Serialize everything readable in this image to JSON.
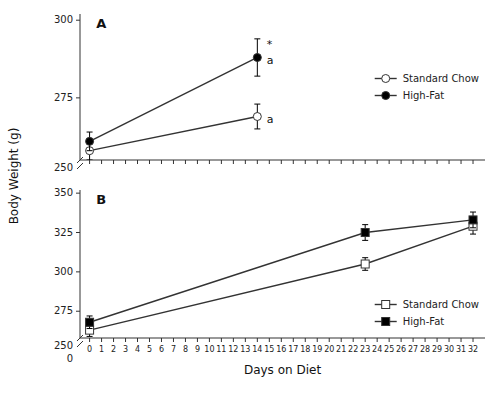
{
  "chart_data": [
    {
      "type": "line",
      "title": "A",
      "y_label": "Body Weight (g)",
      "x": [
        0,
        14
      ],
      "series": [
        {
          "name": "Standard Chow",
          "color": "white",
          "marker": "circle",
          "values": [
            258,
            269
          ],
          "errors": [
            3,
            4
          ]
        },
        {
          "name": "High-Fat",
          "color": "black",
          "marker": "circle",
          "values": [
            261,
            288
          ],
          "errors": [
            3,
            6
          ]
        }
      ],
      "xlim": [
        -0.8,
        33
      ],
      "xticks": [
        0,
        1,
        2,
        3,
        4,
        5,
        6,
        7,
        8,
        9,
        10,
        11,
        12,
        13,
        14,
        15,
        16,
        17,
        18,
        19,
        20,
        21,
        22,
        23,
        24,
        25,
        26,
        27,
        28,
        29,
        30,
        31,
        32
      ],
      "ylim": [
        255,
        302
      ],
      "yticks": [
        275,
        300
      ],
      "tick_labels": "y",
      "legend": "right",
      "grid": false,
      "annotations": [
        {
          "text": "*",
          "x": 14.7,
          "y": 292
        },
        {
          "text": "a",
          "x": 14.7,
          "y": 287
        },
        {
          "text": "a",
          "x": 14.7,
          "y": 268
        },
        {
          "text": "250"
        }
      ]
    },
    {
      "type": "line",
      "title": "B",
      "x_label": "Days on Diet",
      "x": [
        0,
        23,
        32
      ],
      "series": [
        {
          "name": "Standard Chow",
          "color": "white",
          "marker": "square",
          "values": [
            263,
            305,
            329
          ],
          "errors": [
            4,
            4,
            5
          ]
        },
        {
          "name": "High-Fat",
          "color": "black",
          "marker": "square",
          "values": [
            268,
            325,
            333
          ],
          "errors": [
            4,
            5,
            5
          ]
        }
      ],
      "xlim": [
        -0.8,
        33
      ],
      "xticks": [
        0,
        1,
        2,
        3,
        4,
        5,
        6,
        7,
        8,
        9,
        10,
        11,
        12,
        13,
        14,
        15,
        16,
        17,
        18,
        19,
        20,
        21,
        22,
        23,
        24,
        25,
        26,
        27,
        28,
        29,
        30,
        31,
        32
      ],
      "ylim": [
        258,
        352
      ],
      "yticks": [
        275,
        300,
        325,
        350
      ],
      "legend": "lower right",
      "grid": false,
      "annotations": [
        {
          "text": "250"
        },
        {
          "text": "0"
        }
      ]
    }
  ]
}
